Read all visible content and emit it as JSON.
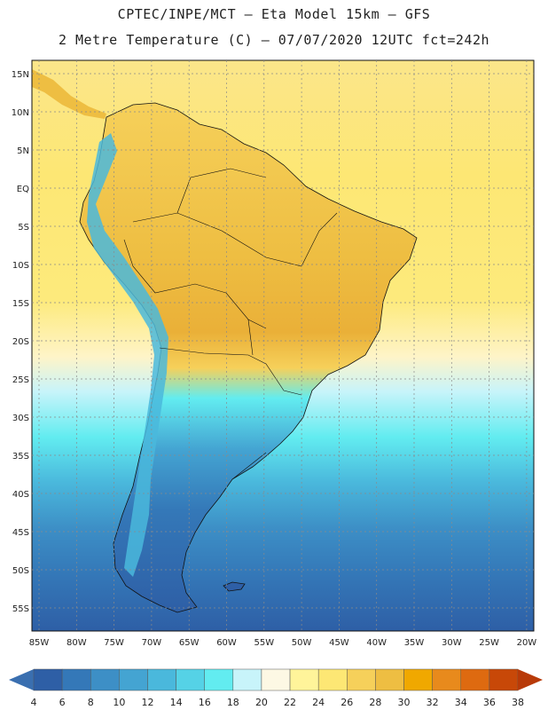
{
  "header": {
    "line1": "CPTEC/INPE/MCT –  Eta Model 15km – GFS",
    "line2": "2 Metre Temperature (C) – 07/07/2020 12UTC fct=242h"
  },
  "map": {
    "lat_labels": [
      "15N",
      "10N",
      "5N",
      "EQ",
      "5S",
      "10S",
      "15S",
      "20S",
      "25S",
      "30S",
      "35S",
      "40S",
      "45S",
      "50S",
      "55S"
    ],
    "lon_labels": [
      "85W",
      "80W",
      "75W",
      "70W",
      "65W",
      "60W",
      "55W",
      "50W",
      "45W",
      "40W",
      "35W",
      "30W",
      "25W",
      "20W"
    ],
    "gridlines": true
  },
  "colorbar": {
    "labels": [
      "4",
      "6",
      "8",
      "10",
      "12",
      "14",
      "16",
      "18",
      "20",
      "22",
      "24",
      "26",
      "28",
      "30",
      "32",
      "34",
      "36",
      "38"
    ],
    "colors": [
      "#2e5fa6",
      "#3478b8",
      "#3d8fc6",
      "#44a4d2",
      "#4ab8dc",
      "#55d2e6",
      "#62ecf0",
      "#c8f4fa",
      "#fdf8e4",
      "#fff49a",
      "#fde774",
      "#f6d05a",
      "#eebe42",
      "#f0a800",
      "#e88a1c",
      "#de6a10",
      "#c84808"
    ],
    "low_arrow_color": "#3a6fb0",
    "high_arrow_color": "#b83a08"
  }
}
